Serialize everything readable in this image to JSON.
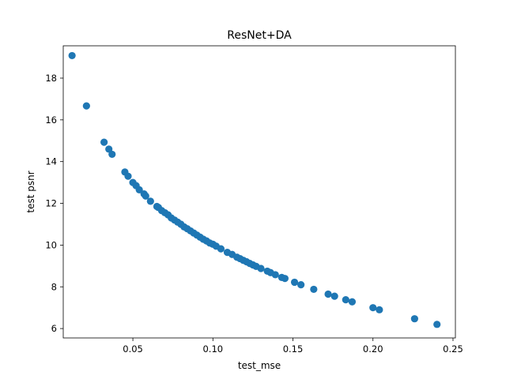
{
  "chart_data": {
    "type": "scatter",
    "title": "ResNet+DA",
    "xlabel": "test_mse",
    "ylabel": "test psnr",
    "xlim": [
      0.0065,
      0.2515
    ],
    "ylim": [
      5.55,
      19.55
    ],
    "xticks": [
      0.05,
      0.1,
      0.15,
      0.2,
      0.25
    ],
    "xtick_labels": [
      "0.05",
      "0.10",
      "0.15",
      "0.20",
      "0.25"
    ],
    "yticks": [
      6,
      8,
      10,
      12,
      14,
      16,
      18
    ],
    "ytick_labels": [
      "6",
      "8",
      "10",
      "12",
      "14",
      "16",
      "18"
    ],
    "grid": false,
    "marker_color": "#1f77b4",
    "points": [
      [
        0.012,
        19.08
      ],
      [
        0.021,
        16.67
      ],
      [
        0.032,
        14.93
      ],
      [
        0.035,
        14.6
      ],
      [
        0.037,
        14.35
      ],
      [
        0.045,
        13.5
      ],
      [
        0.047,
        13.3
      ],
      [
        0.05,
        13.0
      ],
      [
        0.052,
        12.85
      ],
      [
        0.054,
        12.65
      ],
      [
        0.057,
        12.45
      ],
      [
        0.058,
        12.35
      ],
      [
        0.061,
        12.1
      ],
      [
        0.065,
        11.85
      ],
      [
        0.066,
        11.8
      ],
      [
        0.068,
        11.65
      ],
      [
        0.07,
        11.55
      ],
      [
        0.072,
        11.45
      ],
      [
        0.074,
        11.3
      ],
      [
        0.076,
        11.2
      ],
      [
        0.078,
        11.1
      ],
      [
        0.08,
        11.0
      ],
      [
        0.082,
        10.87
      ],
      [
        0.084,
        10.78
      ],
      [
        0.086,
        10.68
      ],
      [
        0.088,
        10.58
      ],
      [
        0.09,
        10.48
      ],
      [
        0.092,
        10.38
      ],
      [
        0.094,
        10.28
      ],
      [
        0.096,
        10.2
      ],
      [
        0.098,
        10.1
      ],
      [
        0.1,
        10.04
      ],
      [
        0.102,
        9.95
      ],
      [
        0.105,
        9.82
      ],
      [
        0.109,
        9.65
      ],
      [
        0.112,
        9.55
      ],
      [
        0.115,
        9.42
      ],
      [
        0.117,
        9.35
      ],
      [
        0.119,
        9.27
      ],
      [
        0.121,
        9.2
      ],
      [
        0.123,
        9.12
      ],
      [
        0.125,
        9.05
      ],
      [
        0.127,
        8.98
      ],
      [
        0.13,
        8.88
      ],
      [
        0.134,
        8.75
      ],
      [
        0.136,
        8.68
      ],
      [
        0.139,
        8.58
      ],
      [
        0.143,
        8.45
      ],
      [
        0.145,
        8.4
      ],
      [
        0.151,
        8.22
      ],
      [
        0.155,
        8.1
      ],
      [
        0.163,
        7.88
      ],
      [
        0.172,
        7.65
      ],
      [
        0.176,
        7.55
      ],
      [
        0.183,
        7.38
      ],
      [
        0.187,
        7.28
      ],
      [
        0.2,
        7.0
      ],
      [
        0.204,
        6.9
      ],
      [
        0.226,
        6.47
      ],
      [
        0.24,
        6.2
      ]
    ]
  }
}
